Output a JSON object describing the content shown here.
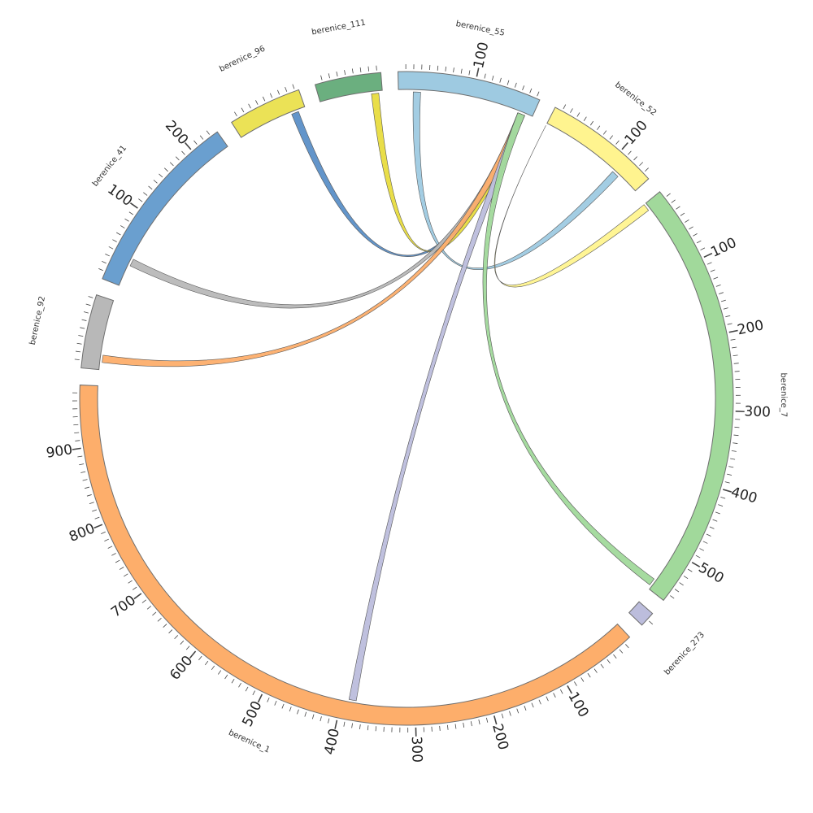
{
  "chart_data": {
    "type": "circos",
    "segments": [
      {
        "name": "berenice_55",
        "length": 185,
        "color": "#9ecae1",
        "tick_labels": [
          100
        ]
      },
      {
        "name": "berenice_52",
        "length": 150,
        "color": "#fff48f",
        "tick_labels": [
          100
        ]
      },
      {
        "name": "berenice_7",
        "length": 560,
        "color": "#a1d99b",
        "tick_labels": [
          100,
          200,
          300,
          400,
          500
        ]
      },
      {
        "name": "berenice_273",
        "length": 20,
        "color": "#bcbddc",
        "tick_labels": []
      },
      {
        "name": "berenice_1",
        "length": 980,
        "color": "#fdae6b",
        "tick_labels": [
          100,
          200,
          300,
          400,
          500,
          600,
          700,
          800,
          900
        ]
      },
      {
        "name": "berenice_92",
        "length": 95,
        "color": "#b8b8b8",
        "tick_labels": []
      },
      {
        "name": "berenice_41",
        "length": 240,
        "color": "#6a9fcf",
        "tick_labels": [
          100,
          200
        ]
      },
      {
        "name": "berenice_96",
        "length": 95,
        "color": "#ebe256",
        "tick_labels": []
      },
      {
        "name": "berenice_111",
        "length": 85,
        "color": "#6baf7f",
        "tick_labels": []
      }
    ],
    "links": [
      {
        "from": "berenice_55",
        "from_range": [
          20,
          30
        ],
        "to": "berenice_52",
        "to_range": [
          110,
          120
        ],
        "color": "#9ecae1"
      },
      {
        "from": "berenice_55",
        "from_range": [
          165,
          175
        ],
        "to": "berenice_96",
        "to_range": [
          75,
          85
        ],
        "color": "#5b8fc7"
      },
      {
        "from": "berenice_55",
        "from_range": [
          165,
          175
        ],
        "to": "berenice_111",
        "to_range": [
          70,
          80
        ],
        "color": "#e8dc3f"
      },
      {
        "from": "berenice_55",
        "from_range": [
          165,
          175
        ],
        "to": "berenice_41",
        "to_range": [
          30,
          40
        ],
        "color": "#b8b8b8"
      },
      {
        "from": "berenice_55",
        "from_range": [
          165,
          175
        ],
        "to": "berenice_92",
        "to_range": [
          10,
          20
        ],
        "color": "#fdae6b"
      },
      {
        "from": "berenice_55",
        "from_range": [
          165,
          175
        ],
        "to": "berenice_1",
        "to_range": [
          380,
          390
        ],
        "color": "#bcbddc"
      },
      {
        "from": "berenice_55",
        "from_range": [
          165,
          175
        ],
        "to": "berenice_7",
        "to_range": [
          545,
          555
        ],
        "color": "#a1d99b"
      },
      {
        "from": "berenice_52",
        "from_range": [
          0,
          0
        ],
        "to": "berenice_7",
        "to_range": [
          0,
          10
        ],
        "color": "#fff48f"
      }
    ]
  }
}
